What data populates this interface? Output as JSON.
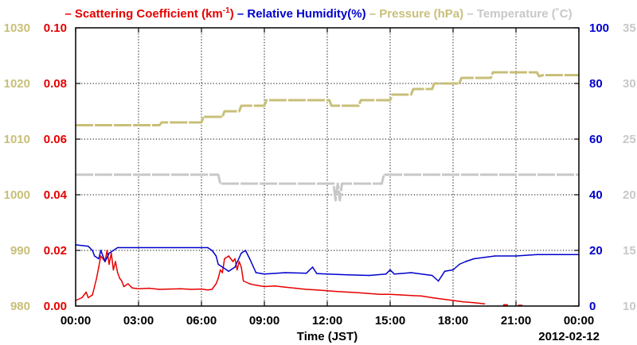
{
  "chart_data": {
    "type": "line",
    "legend": {
      "placement": "top",
      "items": [
        {
          "dash": "–",
          "text": "Scattering Coefficient (km",
          "sup": "-1",
          "close": ")",
          "color": "#e60000"
        },
        {
          "dash": "–",
          "text": "Relative Humidity(%)",
          "color": "#0000cc"
        },
        {
          "dash": "–",
          "text": "Pressure (hPa)",
          "color": "#c8bf78"
        },
        {
          "dash": "–",
          "text": "Temperature (˚C)",
          "color": "#c8c8c8"
        }
      ]
    },
    "xlabel": "Time (JST)",
    "date_label": "2012-02-12",
    "x_range_hours": [
      0,
      24
    ],
    "x_ticks": [
      "00:00",
      "03:00",
      "06:00",
      "09:00",
      "12:00",
      "15:00",
      "18:00",
      "21:00",
      "00:00"
    ],
    "grid": true,
    "axes": {
      "pressure": {
        "side": "left-outer",
        "color": "#c8bf78",
        "range": [
          980,
          1030
        ],
        "ticks": [
          "980",
          "990",
          "1000",
          "1010",
          "1020",
          "1030"
        ]
      },
      "scattering": {
        "side": "left-inner",
        "color": "#e60000",
        "range": [
          0,
          0.1
        ],
        "ticks": [
          "0.00",
          "0.02",
          "0.04",
          "0.06",
          "0.08",
          "0.10"
        ]
      },
      "humidity": {
        "side": "right-inner",
        "color": "#0000cc",
        "range": [
          0,
          100
        ],
        "ticks": [
          "0",
          "20",
          "40",
          "60",
          "80",
          "100"
        ]
      },
      "temperature": {
        "side": "right-outer",
        "color": "#c8c8c8",
        "range": [
          10,
          35
        ],
        "ticks": [
          "10",
          "15",
          "20",
          "25",
          "30",
          "35"
        ]
      }
    },
    "series": [
      {
        "name": "Scattering Coefficient",
        "axis": "scattering",
        "color": "#e60000",
        "points": [
          [
            0.0,
            0.002
          ],
          [
            0.3,
            0.003
          ],
          [
            0.5,
            0.005
          ],
          [
            0.6,
            0.003
          ],
          [
            0.8,
            0.004
          ],
          [
            1.0,
            0.01
          ],
          [
            1.1,
            0.014
          ],
          [
            1.2,
            0.018
          ],
          [
            1.4,
            0.016
          ],
          [
            1.5,
            0.02
          ],
          [
            1.6,
            0.015
          ],
          [
            1.7,
            0.019
          ],
          [
            1.8,
            0.013
          ],
          [
            1.9,
            0.016
          ],
          [
            2.0,
            0.012
          ],
          [
            2.1,
            0.01
          ],
          [
            2.2,
            0.009
          ],
          [
            2.3,
            0.007
          ],
          [
            2.5,
            0.008
          ],
          [
            2.7,
            0.0065
          ],
          [
            3.0,
            0.0062
          ],
          [
            3.5,
            0.0064
          ],
          [
            4.0,
            0.006
          ],
          [
            4.5,
            0.0061
          ],
          [
            5.0,
            0.0062
          ],
          [
            5.5,
            0.006
          ],
          [
            6.0,
            0.0061
          ],
          [
            6.3,
            0.0058
          ],
          [
            6.5,
            0.006
          ],
          [
            6.7,
            0.008
          ],
          [
            6.8,
            0.01
          ],
          [
            6.9,
            0.013
          ],
          [
            7.0,
            0.012
          ],
          [
            7.1,
            0.017
          ],
          [
            7.3,
            0.018
          ],
          [
            7.5,
            0.016
          ],
          [
            7.6,
            0.017
          ],
          [
            7.7,
            0.013
          ],
          [
            7.8,
            0.016
          ],
          [
            7.9,
            0.014
          ],
          [
            8.0,
            0.009
          ],
          [
            8.3,
            0.008
          ],
          [
            8.6,
            0.0075
          ],
          [
            9.0,
            0.007
          ],
          [
            9.5,
            0.0072
          ],
          [
            10.0,
            0.0068
          ],
          [
            10.5,
            0.0064
          ],
          [
            11.0,
            0.006
          ],
          [
            11.5,
            0.0058
          ],
          [
            12.0,
            0.0055
          ],
          [
            12.5,
            0.0052
          ],
          [
            13.0,
            0.005
          ],
          [
            13.5,
            0.0048
          ],
          [
            14.0,
            0.0045
          ],
          [
            14.5,
            0.0042
          ],
          [
            15.0,
            0.0042
          ],
          [
            15.5,
            0.004
          ],
          [
            16.0,
            0.0038
          ],
          [
            16.5,
            0.0036
          ],
          [
            17.0,
            0.003
          ],
          [
            17.5,
            0.0025
          ],
          [
            18.0,
            0.002
          ],
          [
            18.5,
            0.0015
          ],
          [
            19.0,
            0.0012
          ],
          [
            19.5,
            0.0008
          ]
        ],
        "extra_points": [
          [
            20.5,
            0.0004
          ],
          [
            21.2,
            0.0002
          ]
        ]
      },
      {
        "name": "Relative Humidity",
        "axis": "humidity",
        "color": "#0000cc",
        "points": [
          [
            0.0,
            22
          ],
          [
            0.6,
            21.5
          ],
          [
            0.8,
            20
          ],
          [
            0.9,
            18
          ],
          [
            1.1,
            17
          ],
          [
            1.2,
            20
          ],
          [
            1.4,
            16
          ],
          [
            1.6,
            19
          ],
          [
            1.8,
            20
          ],
          [
            2.0,
            21
          ],
          [
            6.3,
            21
          ],
          [
            6.5,
            20
          ],
          [
            6.7,
            18
          ],
          [
            6.8,
            15
          ],
          [
            7.3,
            12.5
          ],
          [
            7.6,
            14
          ],
          [
            7.9,
            19
          ],
          [
            8.1,
            20
          ],
          [
            8.3,
            17
          ],
          [
            8.6,
            12
          ],
          [
            9.0,
            11.5
          ],
          [
            10.0,
            12
          ],
          [
            11.0,
            11.8
          ],
          [
            11.3,
            14
          ],
          [
            11.5,
            11.7
          ],
          [
            12.0,
            11.5
          ],
          [
            13.0,
            11.2
          ],
          [
            14.0,
            11.0
          ],
          [
            14.8,
            11.5
          ],
          [
            15.0,
            13
          ],
          [
            15.2,
            11.5
          ],
          [
            16.0,
            12
          ],
          [
            17.0,
            11
          ],
          [
            17.3,
            9
          ],
          [
            17.6,
            12.5
          ],
          [
            18.0,
            13
          ],
          [
            18.3,
            15
          ],
          [
            18.6,
            16
          ],
          [
            19.0,
            17
          ],
          [
            19.5,
            17.5
          ],
          [
            20.0,
            18
          ],
          [
            21.0,
            18
          ],
          [
            22.0,
            18.5
          ],
          [
            24.0,
            18.5
          ]
        ]
      },
      {
        "name": "Pressure",
        "axis": "pressure",
        "color": "#c8bf78",
        "points": [
          [
            0.0,
            1012.5
          ],
          [
            4.0,
            1012.5
          ],
          [
            4.1,
            1013.0
          ],
          [
            6.0,
            1013.0
          ],
          [
            6.1,
            1014.0
          ],
          [
            7.0,
            1014.0
          ],
          [
            7.1,
            1015.0
          ],
          [
            7.8,
            1015.0
          ],
          [
            7.9,
            1016.0
          ],
          [
            9.0,
            1016.0
          ],
          [
            9.1,
            1017.0
          ],
          [
            12.1,
            1017.0
          ],
          [
            12.2,
            1016.0
          ],
          [
            13.5,
            1016.0
          ],
          [
            13.6,
            1017.0
          ],
          [
            15.0,
            1017.0
          ],
          [
            15.1,
            1018.0
          ],
          [
            16.0,
            1018.0
          ],
          [
            16.1,
            1019.0
          ],
          [
            17.0,
            1019.0
          ],
          [
            17.1,
            1020.0
          ],
          [
            18.3,
            1020.0
          ],
          [
            18.4,
            1021.0
          ],
          [
            19.8,
            1021.0
          ],
          [
            19.9,
            1022.0
          ],
          [
            22.0,
            1022.0
          ],
          [
            22.1,
            1021.3
          ],
          [
            22.3,
            1021.5
          ],
          [
            24.0,
            1021.5
          ]
        ]
      },
      {
        "name": "Temperature",
        "axis": "temperature",
        "color": "#c8c8c8",
        "points": [
          [
            0.0,
            21.8
          ],
          [
            6.8,
            21.8
          ],
          [
            6.9,
            21.0
          ],
          [
            12.3,
            21.0
          ],
          [
            12.4,
            19.5
          ],
          [
            12.5,
            21.0
          ],
          [
            12.6,
            19.5
          ],
          [
            12.7,
            21.0
          ],
          [
            14.6,
            21.0
          ],
          [
            14.7,
            21.8
          ],
          [
            24.0,
            21.8
          ]
        ]
      }
    ]
  }
}
